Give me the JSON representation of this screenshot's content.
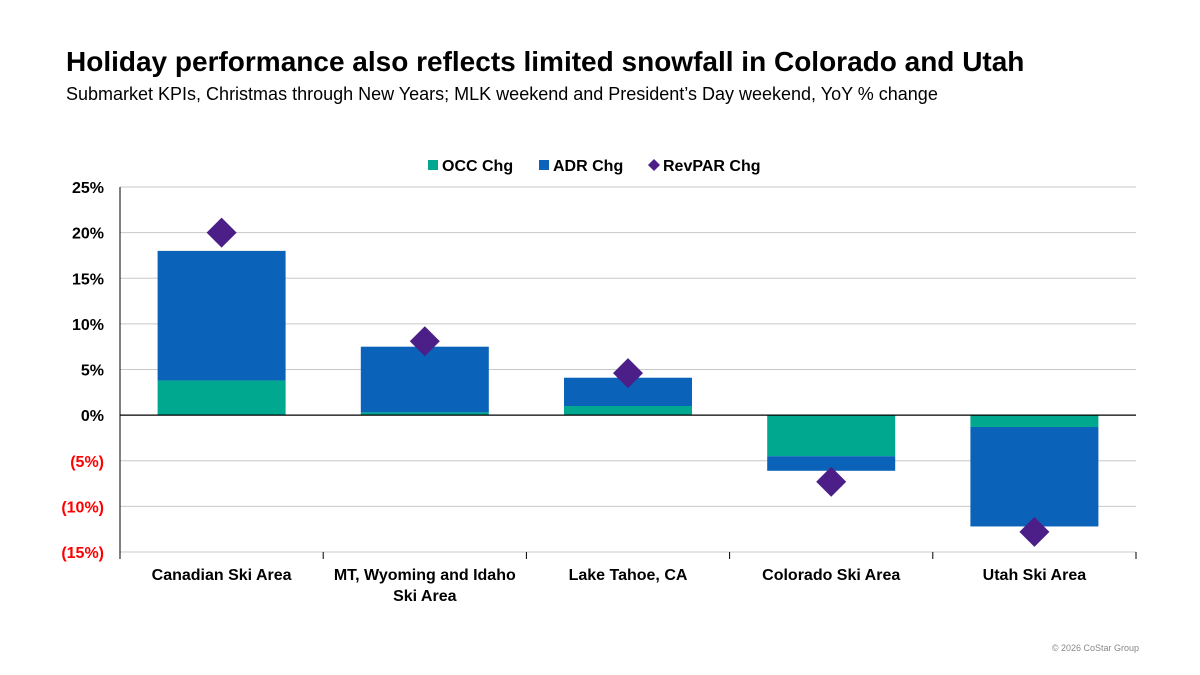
{
  "header": {
    "title": "Holiday performance also reflects limited snowfall in Colorado and Utah",
    "subtitle": "Submarket KPIs, Christmas through New Years; MLK weekend and President’s Day weekend, YoY % change"
  },
  "footer": {
    "copyright": "© 2026 CoStar Group"
  },
  "chart_data": {
    "type": "bar",
    "stacked": true,
    "categories": [
      [
        "Canadian Ski Area"
      ],
      [
        "MT, Wyoming and Idaho",
        "Ski Area"
      ],
      [
        "Lake Tahoe, CA"
      ],
      [
        "Colorado Ski Area"
      ],
      [
        "Utah Ski Area"
      ]
    ],
    "series": [
      {
        "name": "OCC Chg",
        "kind": "bar",
        "color": "#00A88F",
        "values": [
          3.8,
          0.3,
          1.0,
          -4.5,
          -1.3
        ]
      },
      {
        "name": "ADR Chg",
        "kind": "bar",
        "color": "#0A63B8",
        "values": [
          14.2,
          7.2,
          3.1,
          -1.6,
          -10.9
        ]
      },
      {
        "name": "RevPAR Chg",
        "kind": "marker",
        "marker": "diamond",
        "color": "#4B1F87",
        "values": [
          20.0,
          8.1,
          4.6,
          -7.3,
          -12.8
        ]
      }
    ],
    "ylim": [
      -15,
      25
    ],
    "yticks": [
      25,
      20,
      15,
      10,
      5,
      0,
      -5,
      -10,
      -15
    ],
    "ytick_labels": [
      "25%",
      "20%",
      "15%",
      "10%",
      "5%",
      "0%",
      "(5%)",
      "(10%)",
      "(15%)"
    ],
    "negative_tick_color": "#FF0000",
    "grid": true,
    "legend_position": "top-center",
    "xlabel": "",
    "ylabel": ""
  }
}
